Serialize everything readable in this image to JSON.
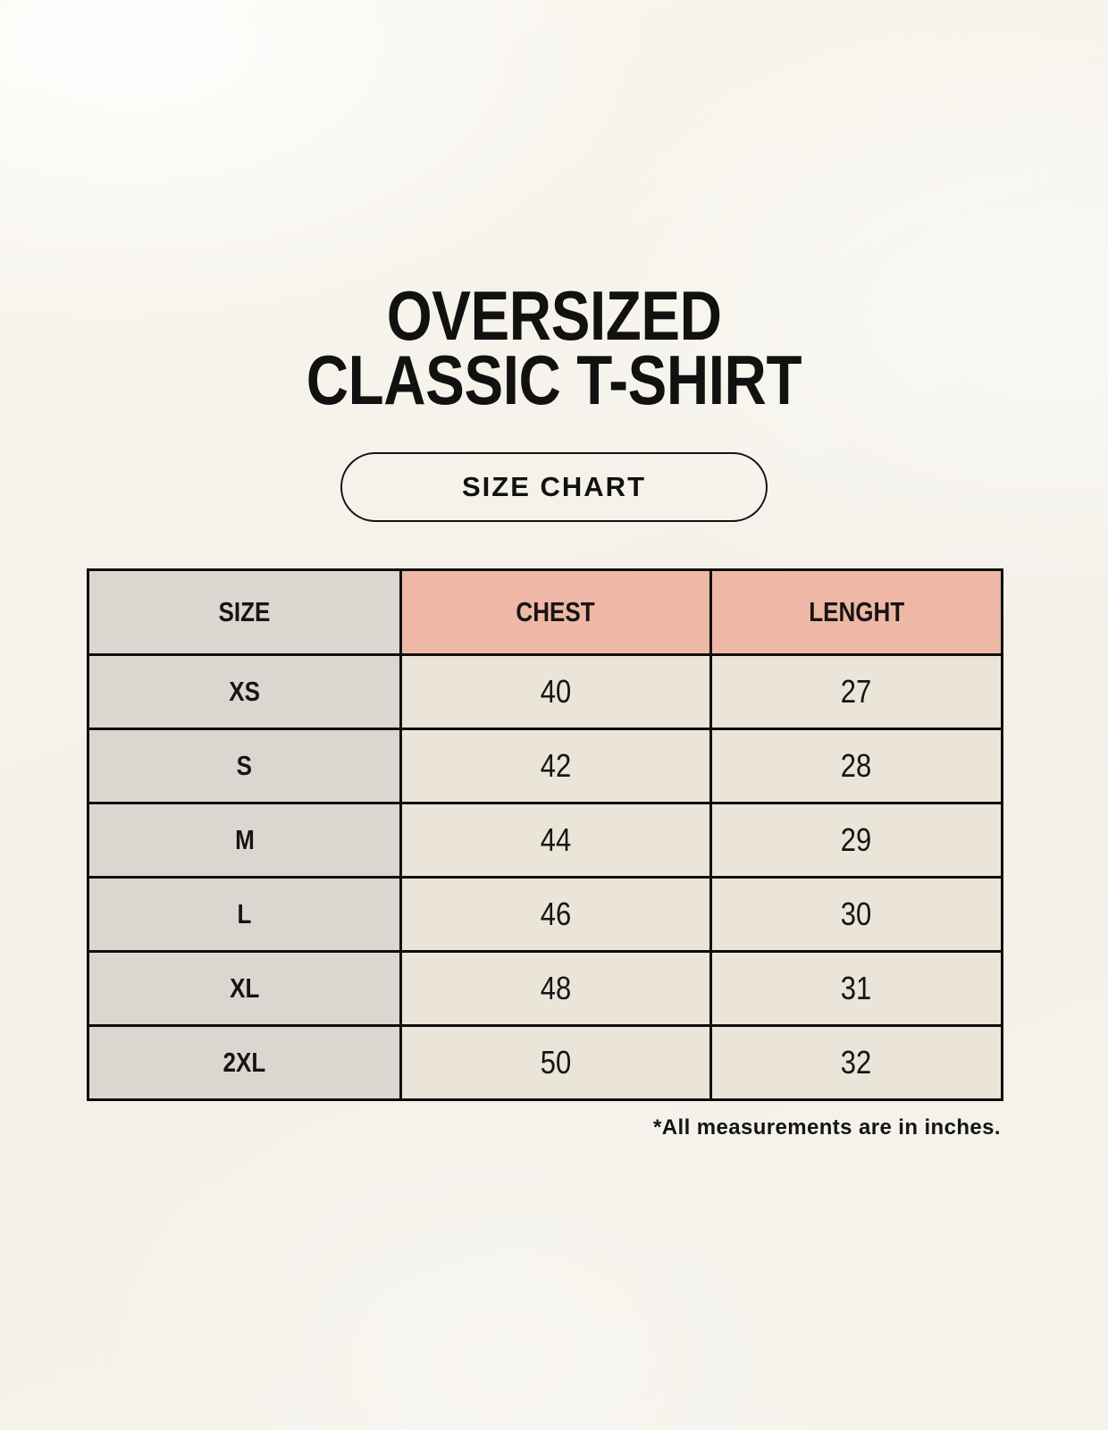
{
  "page": {
    "title_line1": "OVERSIZED",
    "title_line2": "CLASSIC T-SHIRT",
    "badge_label": "SIZE CHART",
    "footnote": "*All measurements are in inches."
  },
  "table": {
    "headers": [
      "SIZE",
      "CHEST",
      "LENGHT"
    ],
    "rows": [
      {
        "size": "XS",
        "chest": "40",
        "length": "27"
      },
      {
        "size": "S",
        "chest": "42",
        "length": "28"
      },
      {
        "size": "M",
        "chest": "44",
        "length": "29"
      },
      {
        "size": "L",
        "chest": "46",
        "length": "30"
      },
      {
        "size": "XL",
        "chest": "48",
        "length": "31"
      },
      {
        "size": "2XL",
        "chest": "50",
        "length": "32"
      }
    ]
  },
  "colors": {
    "background": "#f5f2ea",
    "header_accent_pink": "#efb7a5",
    "size_column_gray": "#dcd6d1",
    "data_cell_cream": "#eae4d9",
    "table_border": "#0e0e0e",
    "text": "#151515"
  },
  "chart_data": {
    "type": "table",
    "title": "OVERSIZED CLASSIC T-SHIRT",
    "subtitle": "SIZE CHART",
    "columns": [
      "SIZE",
      "CHEST",
      "LENGHT"
    ],
    "rows": [
      [
        "XS",
        40,
        27
      ],
      [
        "S",
        42,
        28
      ],
      [
        "M",
        44,
        29
      ],
      [
        "L",
        46,
        30
      ],
      [
        "XL",
        48,
        31
      ],
      [
        "2XL",
        50,
        32
      ]
    ],
    "note": "*All measurements are in inches.",
    "units": "inches"
  }
}
